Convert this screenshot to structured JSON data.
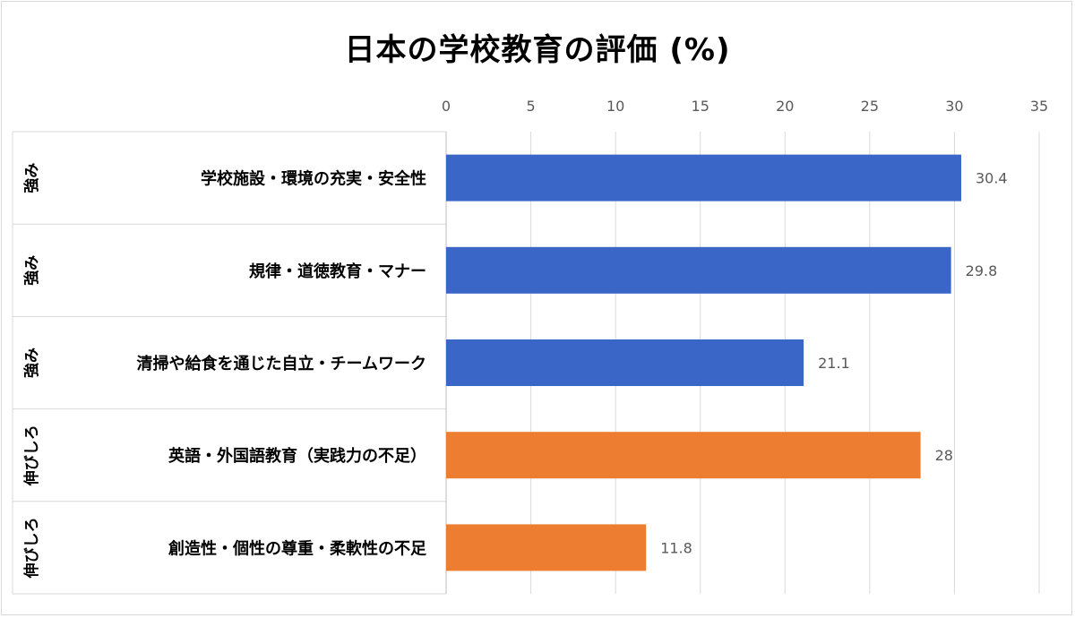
{
  "chart_data": {
    "type": "bar",
    "orientation": "horizontal",
    "title": "日本の学校教育の評価 (%)",
    "xlim": [
      0,
      35
    ],
    "xticks": [
      0,
      5,
      10,
      15,
      20,
      25,
      30,
      35
    ],
    "x_axis_position": "top",
    "grid": true,
    "legend": "none",
    "categories": [
      {
        "group": "強み",
        "label": "学校施設・環境の充実・安全性",
        "value": 30.4,
        "value_label": "30.4",
        "color": "#3a66c8"
      },
      {
        "group": "強み",
        "label": "規律・道徳教育・マナー",
        "value": 29.8,
        "value_label": "29.8",
        "color": "#3a66c8"
      },
      {
        "group": "強み",
        "label": "清掃や給食を通じた自立・チームワーク",
        "value": 21.1,
        "value_label": "21.1",
        "color": "#3a66c8"
      },
      {
        "group": "伸びしろ",
        "label": "英語・外国語教育（実践力の不足）",
        "value": 28,
        "value_label": "28",
        "color": "#ed7d31"
      },
      {
        "group": "伸びしろ",
        "label": "創造性・個性の尊重・柔軟性の不足",
        "value": 11.8,
        "value_label": "11.8",
        "color": "#ed7d31"
      }
    ]
  }
}
